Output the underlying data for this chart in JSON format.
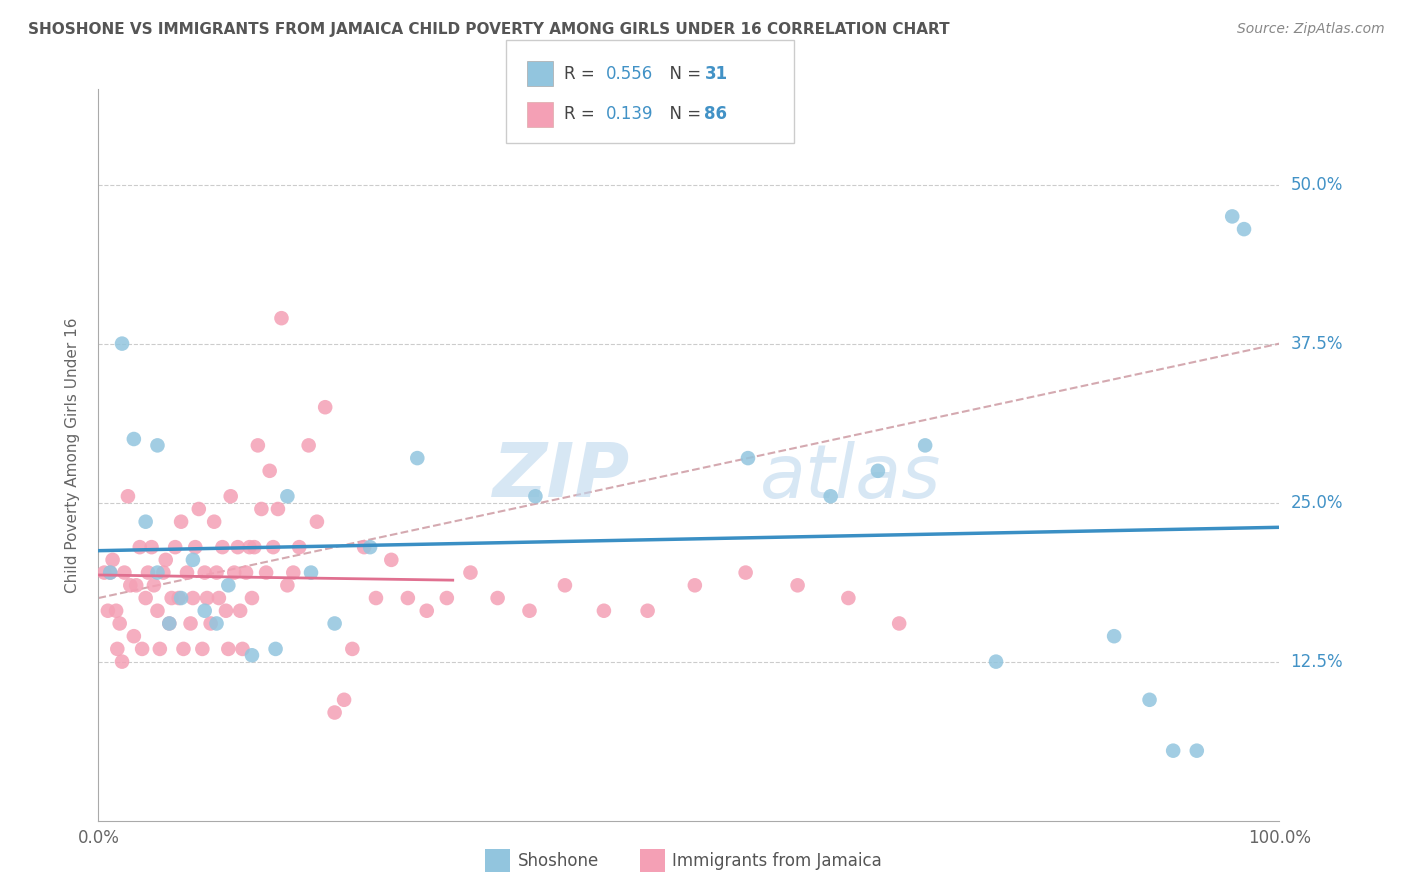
{
  "title": "SHOSHONE VS IMMIGRANTS FROM JAMAICA CHILD POVERTY AMONG GIRLS UNDER 16 CORRELATION CHART",
  "source": "Source: ZipAtlas.com",
  "ylabel": "Child Poverty Among Girls Under 16",
  "ytick_labels": [
    "12.5%",
    "25.0%",
    "37.5%",
    "50.0%"
  ],
  "legend_R1": "0.556",
  "legend_N1": "31",
  "legend_R2": "0.139",
  "legend_N2": "86",
  "legend_label1": "Shoshone",
  "legend_label2": "Immigrants from Jamaica",
  "color_blue": "#92c5de",
  "color_pink": "#f4a0b5",
  "color_line_blue": "#3a8fc4",
  "color_line_pink": "#e07090",
  "color_line_dashed": "#d0a0a8",
  "watermark1": "ZIP",
  "watermark2": "atlas",
  "xlim": [
    0.0,
    1.0
  ],
  "ylim": [
    0.0,
    0.575
  ],
  "shoshone_x": [
    0.01,
    0.02,
    0.03,
    0.04,
    0.05,
    0.05,
    0.06,
    0.07,
    0.08,
    0.09,
    0.1,
    0.11,
    0.13,
    0.15,
    0.16,
    0.18,
    0.2,
    0.23,
    0.27,
    0.37,
    0.55,
    0.62,
    0.66,
    0.7,
    0.76,
    0.86,
    0.89,
    0.91,
    0.93,
    0.96,
    0.97
  ],
  "shoshone_y": [
    0.195,
    0.375,
    0.3,
    0.235,
    0.295,
    0.195,
    0.155,
    0.175,
    0.205,
    0.165,
    0.155,
    0.185,
    0.13,
    0.135,
    0.255,
    0.195,
    0.155,
    0.215,
    0.285,
    0.255,
    0.285,
    0.255,
    0.275,
    0.295,
    0.125,
    0.145,
    0.095,
    0.055,
    0.055,
    0.475,
    0.465
  ],
  "jamaica_x": [
    0.005,
    0.008,
    0.01,
    0.012,
    0.015,
    0.016,
    0.018,
    0.02,
    0.022,
    0.025,
    0.027,
    0.03,
    0.032,
    0.035,
    0.037,
    0.04,
    0.042,
    0.045,
    0.047,
    0.05,
    0.052,
    0.055,
    0.057,
    0.06,
    0.062,
    0.065,
    0.068,
    0.07,
    0.072,
    0.075,
    0.078,
    0.08,
    0.082,
    0.085,
    0.088,
    0.09,
    0.092,
    0.095,
    0.098,
    0.1,
    0.102,
    0.105,
    0.108,
    0.11,
    0.112,
    0.115,
    0.118,
    0.12,
    0.122,
    0.125,
    0.128,
    0.13,
    0.132,
    0.135,
    0.138,
    0.142,
    0.145,
    0.148,
    0.152,
    0.155,
    0.16,
    0.165,
    0.17,
    0.178,
    0.185,
    0.192,
    0.2,
    0.208,
    0.215,
    0.225,
    0.235,
    0.248,
    0.262,
    0.278,
    0.295,
    0.315,
    0.338,
    0.365,
    0.395,
    0.428,
    0.465,
    0.505,
    0.548,
    0.592,
    0.635,
    0.678
  ],
  "jamaica_y": [
    0.195,
    0.165,
    0.195,
    0.205,
    0.165,
    0.135,
    0.155,
    0.125,
    0.195,
    0.255,
    0.185,
    0.145,
    0.185,
    0.215,
    0.135,
    0.175,
    0.195,
    0.215,
    0.185,
    0.165,
    0.135,
    0.195,
    0.205,
    0.155,
    0.175,
    0.215,
    0.175,
    0.235,
    0.135,
    0.195,
    0.155,
    0.175,
    0.215,
    0.245,
    0.135,
    0.195,
    0.175,
    0.155,
    0.235,
    0.195,
    0.175,
    0.215,
    0.165,
    0.135,
    0.255,
    0.195,
    0.215,
    0.165,
    0.135,
    0.195,
    0.215,
    0.175,
    0.215,
    0.295,
    0.245,
    0.195,
    0.275,
    0.215,
    0.245,
    0.395,
    0.185,
    0.195,
    0.215,
    0.295,
    0.235,
    0.325,
    0.085,
    0.095,
    0.135,
    0.215,
    0.175,
    0.205,
    0.175,
    0.165,
    0.175,
    0.195,
    0.175,
    0.165,
    0.185,
    0.165,
    0.165,
    0.185,
    0.195,
    0.185,
    0.175,
    0.155
  ]
}
